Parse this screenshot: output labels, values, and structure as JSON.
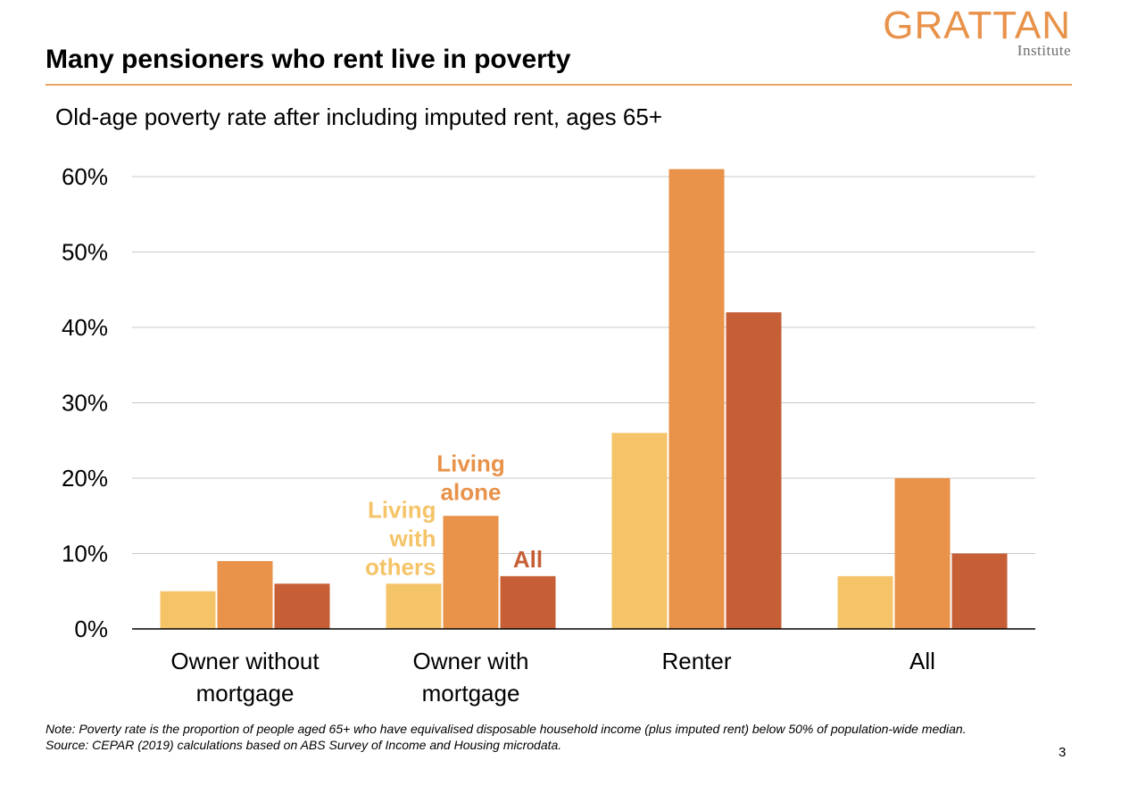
{
  "header": {
    "title": "Many pensioners who rent live in poverty",
    "logo_main": "GRATTAN",
    "logo_sub": "Institute"
  },
  "footer": {
    "note": "Note: Poverty rate is the proportion of people aged 65+ who have equivalised disposable household income (plus imputed rent) below 50% of population-wide median.",
    "source": "Source: CEPAR (2019) calculations based on ABS Survey of Income and Housing microdata.",
    "page_number": "3"
  },
  "chart_data": {
    "type": "bar",
    "title": "Old-age poverty rate after including imputed rent, ages 65+",
    "categories": [
      "Owner without mortgage",
      "Owner with mortgage",
      "Renter",
      "All"
    ],
    "series": [
      {
        "name": "Living with others",
        "values": [
          5,
          6,
          26,
          7
        ],
        "color": "#f5c469"
      },
      {
        "name": "Living alone",
        "values": [
          9,
          15,
          61,
          20
        ],
        "color": "#e8924a"
      },
      {
        "name": "All",
        "values": [
          6,
          7,
          42,
          10
        ],
        "color": "#c65f36"
      }
    ],
    "yticks": [
      "0%",
      "10%",
      "20%",
      "30%",
      "40%",
      "50%",
      "60%"
    ],
    "ylim": [
      0,
      60
    ],
    "grid": true,
    "legend": "inline labels above Owner with mortgage bars"
  }
}
